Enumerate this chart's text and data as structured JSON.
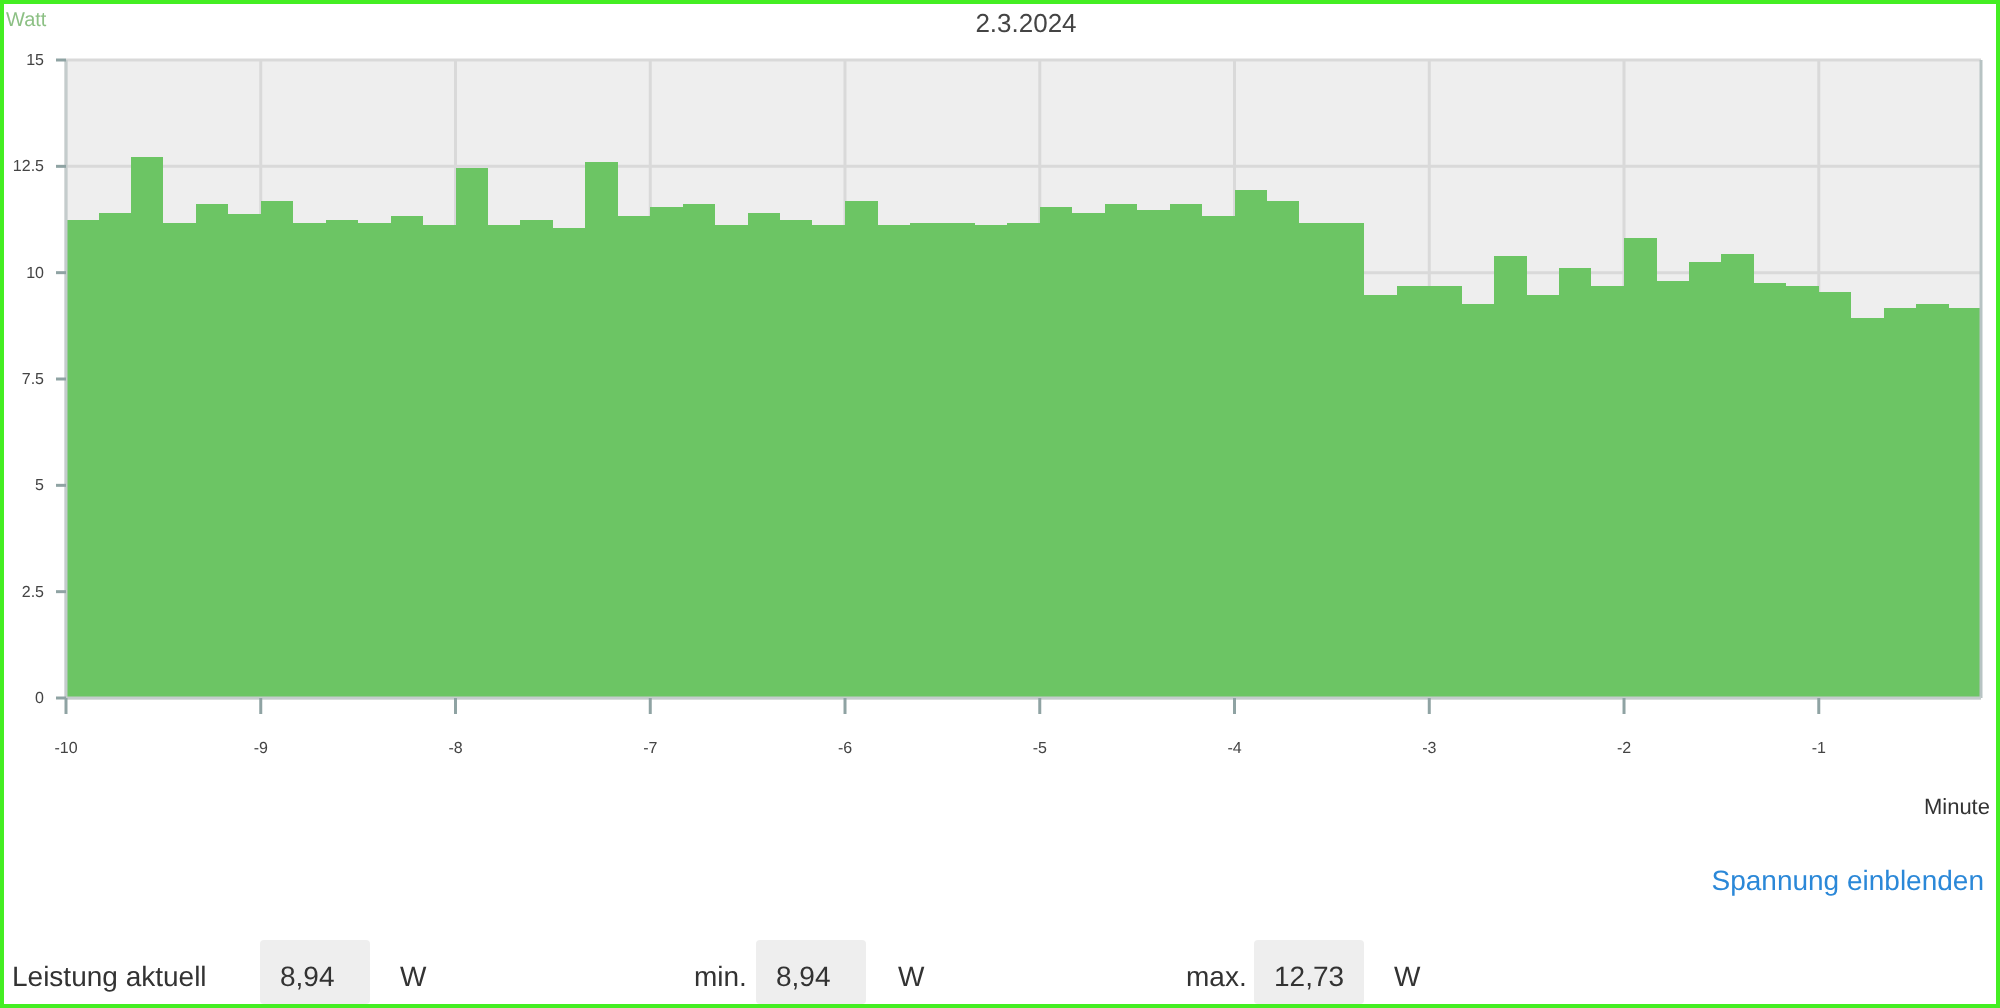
{
  "chart_data": {
    "type": "histogram",
    "title": "2.3.2024",
    "ylabel": "Watt",
    "xlabel": "Minute",
    "bins": [
      -10,
      -9.833,
      -9.667,
      -9.5,
      -9.333,
      -9.167,
      -9,
      -8.833,
      -8.667,
      -8.5,
      -8.333,
      -8.167,
      -8,
      -7.833,
      -7.667,
      -7.5,
      -7.333,
      -7.167,
      -7,
      -6.833,
      -6.667,
      -6.5,
      -6.333,
      -6.167,
      -6,
      -5.833,
      -5.667,
      -5.5,
      -5.333,
      -5.167,
      -5,
      -4.833,
      -4.667,
      -4.5,
      -4.333,
      -4.167,
      -4,
      -3.833,
      -3.667,
      -3.5,
      -3.333,
      -3.167,
      -3,
      -2.833,
      -2.667,
      -2.5,
      -2.333,
      -2.167,
      -2,
      -1.833,
      -1.667,
      -1.5,
      -1.333,
      -1.167,
      -1,
      -0.833,
      -0.667,
      -0.5,
      -0.333,
      -0.167
    ],
    "values": [
      11.25,
      11.41,
      12.73,
      11.17,
      11.61,
      11.39,
      11.69,
      11.17,
      11.25,
      11.17,
      11.33,
      11.11,
      12.47,
      11.11,
      11.25,
      11.05,
      12.61,
      11.33,
      11.55,
      11.61,
      11.11,
      11.41,
      11.25,
      11.11,
      11.69,
      11.11,
      11.17,
      11.17,
      11.11,
      11.17,
      11.55,
      11.41,
      11.61,
      11.47,
      11.61,
      11.33,
      11.95,
      11.69,
      11.17,
      11.17,
      9.47,
      9.69,
      9.69,
      9.27,
      10.39,
      9.47,
      10.11,
      9.69,
      10.81,
      9.81,
      10.25,
      10.45,
      9.75,
      9.69,
      9.55,
      8.94,
      9.17,
      9.27,
      9.17
    ],
    "color": "#6cc564",
    "xlim": [
      -10,
      -0.167
    ],
    "xticks": [
      -10,
      -9,
      -8,
      -7,
      -6,
      -5,
      -4,
      -3,
      -2,
      -1
    ],
    "ylim": [
      0,
      15
    ],
    "yticks": [
      0,
      2.5,
      5,
      7.5,
      10,
      12.5,
      15
    ],
    "grid": true,
    "annotations": [
      "Spannung einblenden",
      "Leistung aktuell",
      "8,94",
      "W",
      "min.",
      "8,94",
      "W",
      "max.",
      "12,73",
      "W"
    ]
  }
}
